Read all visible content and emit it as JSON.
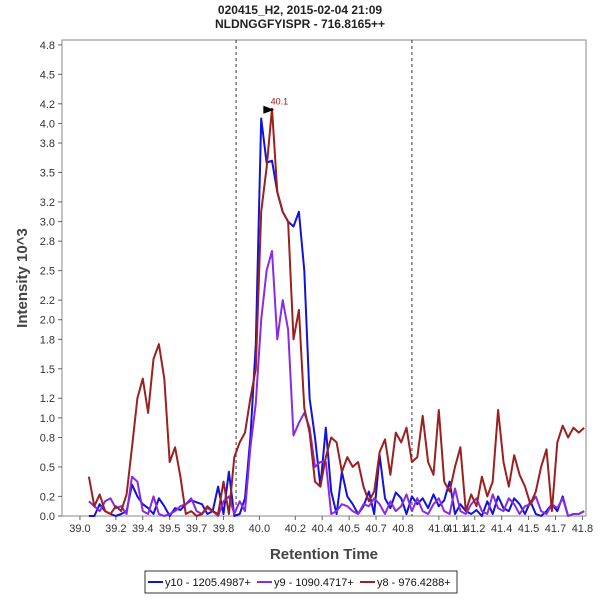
{
  "chart_data": {
    "type": "line",
    "title": "020415_H2, 2015-02-04 21:09",
    "subtitle": "NLDNGGFYISPR - 716.8165++",
    "xlabel": "Retention Time",
    "ylabel": "Intensity 10^3",
    "xlim": [
      38.9,
      41.82
    ],
    "ylim": [
      0,
      4.85
    ],
    "xticks": [
      "39.0",
      "39.2",
      "39.4",
      "39.5",
      "39.7",
      "39.8",
      "40.0",
      "40.2",
      "40.4",
      "40.5",
      "40.7",
      "40.8",
      "41.0",
      "41.1",
      "41.2",
      "41.4",
      "41.5",
      "41.7",
      "41.8"
    ],
    "xtick_values": [
      39.0,
      39.2,
      39.35,
      39.5,
      39.65,
      39.8,
      40.0,
      40.2,
      40.35,
      40.5,
      40.65,
      40.8,
      41.0,
      41.1,
      41.2,
      41.35,
      41.5,
      41.65,
      41.8
    ],
    "yticks": [
      "0.0",
      "0.2",
      "0.5",
      "0.8",
      "1.0",
      "1.2",
      "1.5",
      "1.8",
      "2.0",
      "2.2",
      "2.5",
      "2.8",
      "3.0",
      "3.2",
      "3.5",
      "3.8",
      "4.0",
      "4.2",
      "4.5",
      "4.8"
    ],
    "ytick_values": [
      0.0,
      0.2,
      0.5,
      0.8,
      1.0,
      1.2,
      1.5,
      1.8,
      2.0,
      2.2,
      2.5,
      2.8,
      3.0,
      3.2,
      3.5,
      3.8,
      4.0,
      4.2,
      4.5,
      4.8
    ],
    "integration_bounds": [
      39.87,
      40.85
    ],
    "annotation": {
      "text": "40.1",
      "x": 40.1,
      "y": 4.15,
      "color": "#8b1a1a"
    },
    "series": [
      {
        "name": "y10 - 1205.4987+",
        "color": "#1212d8",
        "x": [
          39.05,
          39.08,
          39.11,
          39.14,
          39.17,
          39.2,
          39.23,
          39.26,
          39.29,
          39.32,
          39.35,
          39.38,
          39.41,
          39.44,
          39.47,
          39.5,
          39.53,
          39.56,
          39.59,
          39.62,
          39.65,
          39.68,
          39.71,
          39.74,
          39.77,
          39.8,
          39.83,
          39.86,
          39.89,
          39.92,
          39.95,
          39.98,
          40.01,
          40.04,
          40.07,
          40.1,
          40.13,
          40.16,
          40.19,
          40.22,
          40.25,
          40.28,
          40.31,
          40.34,
          40.37,
          40.4,
          40.43,
          40.46,
          40.49,
          40.52,
          40.55,
          40.58,
          40.61,
          40.64,
          40.67,
          40.7,
          40.73,
          40.76,
          40.79,
          40.82,
          40.85,
          40.88,
          40.91,
          40.94,
          40.97,
          41.0,
          41.03,
          41.06,
          41.09,
          41.12,
          41.15,
          41.18,
          41.21,
          41.24,
          41.27,
          41.3,
          41.33,
          41.36,
          41.39,
          41.42,
          41.45,
          41.48,
          41.51,
          41.54,
          41.57,
          41.6,
          41.63,
          41.66,
          41.69,
          41.72,
          41.75,
          41.78,
          41.81
        ],
        "y": [
          0.0,
          0.0,
          0.12,
          0.05,
          0.02,
          0.0,
          0.02,
          0.05,
          0.32,
          0.2,
          0.12,
          0.08,
          0.02,
          0.18,
          0.1,
          0.0,
          0.08,
          0.06,
          0.12,
          0.16,
          0.14,
          0.12,
          0.02,
          0.05,
          0.3,
          0.02,
          0.45,
          0.0,
          0.02,
          0.18,
          0.8,
          1.75,
          4.05,
          3.6,
          3.62,
          3.3,
          3.1,
          3.0,
          2.95,
          3.1,
          2.5,
          1.2,
          0.8,
          0.3,
          0.9,
          0.25,
          0.02,
          0.45,
          0.2,
          0.12,
          0.02,
          0.1,
          0.25,
          0.02,
          0.62,
          0.18,
          0.08,
          0.24,
          0.18,
          0.02,
          0.2,
          0.12,
          0.18,
          0.08,
          0.22,
          0.1,
          0.16,
          0.35,
          0.02,
          0.12,
          0.05,
          0.02,
          0.06,
          0.0,
          0.15,
          0.02,
          0.2,
          0.08,
          0.05,
          0.18,
          0.12,
          0.02,
          0.15,
          0.02,
          0.0,
          0.05,
          0.12,
          0.05,
          0.2,
          0.0,
          0.02,
          0.02,
          0.05
        ]
      },
      {
        "name": "y9 - 1090.4717+",
        "color": "#8a2be2",
        "x": [
          39.05,
          39.08,
          39.11,
          39.14,
          39.17,
          39.2,
          39.23,
          39.26,
          39.29,
          39.32,
          39.35,
          39.38,
          39.41,
          39.44,
          39.47,
          39.5,
          39.53,
          39.56,
          39.59,
          39.62,
          39.65,
          39.68,
          39.71,
          39.74,
          39.77,
          39.8,
          39.83,
          39.86,
          39.89,
          39.92,
          39.95,
          39.98,
          40.01,
          40.04,
          40.07,
          40.1,
          40.13,
          40.16,
          40.19,
          40.22,
          40.25,
          40.28,
          40.31,
          40.34,
          40.37,
          40.4,
          40.43,
          40.46,
          40.49,
          40.52,
          40.55,
          40.58,
          40.61,
          40.64,
          40.67,
          40.7,
          40.73,
          40.76,
          40.79,
          40.82,
          40.85,
          40.88,
          40.91,
          40.94,
          40.97,
          41.0,
          41.03,
          41.06,
          41.09,
          41.12,
          41.15,
          41.18,
          41.21,
          41.24,
          41.27,
          41.3,
          41.33,
          41.36,
          41.39,
          41.42,
          41.45,
          41.48,
          41.51,
          41.54,
          41.57,
          41.6,
          41.63,
          41.66,
          41.69,
          41.72,
          41.75,
          41.78,
          41.81
        ],
        "y": [
          0.15,
          0.1,
          0.05,
          0.15,
          0.18,
          0.08,
          0.1,
          0.02,
          0.4,
          0.35,
          0.05,
          0.02,
          0.2,
          0.02,
          0.0,
          0.02,
          0.05,
          0.1,
          0.12,
          0.18,
          0.05,
          0.02,
          0.08,
          0.05,
          0.0,
          0.15,
          0.2,
          0.02,
          0.15,
          0.05,
          0.7,
          1.15,
          2.0,
          2.5,
          2.7,
          1.8,
          2.2,
          1.9,
          0.82,
          0.95,
          1.05,
          0.9,
          0.5,
          0.55,
          0.55,
          0.02,
          0.05,
          0.12,
          0.1,
          0.05,
          0.02,
          0.12,
          0.1,
          0.18,
          0.12,
          0.02,
          0.15,
          0.05,
          0.1,
          0.22,
          0.05,
          0.18,
          0.05,
          0.02,
          0.12,
          0.18,
          0.05,
          0.02,
          0.28,
          0.05,
          0.02,
          0.12,
          0.18,
          0.05,
          0.02,
          0.22,
          0.08,
          0.05,
          0.18,
          0.12,
          0.02,
          0.1,
          0.12,
          0.2,
          0.05,
          0.02,
          0.12,
          0.08,
          0.18,
          0.0,
          0.02,
          0.02,
          0.05
        ]
      },
      {
        "name": "y8 - 976.4288+",
        "color": "#9b2020",
        "x": [
          39.05,
          39.08,
          39.11,
          39.14,
          39.17,
          39.2,
          39.23,
          39.26,
          39.29,
          39.32,
          39.35,
          39.38,
          39.41,
          39.44,
          39.47,
          39.5,
          39.53,
          39.56,
          39.59,
          39.62,
          39.65,
          39.68,
          39.71,
          39.74,
          39.77,
          39.8,
          39.83,
          39.86,
          39.89,
          39.92,
          39.95,
          39.98,
          40.01,
          40.04,
          40.07,
          40.1,
          40.13,
          40.16,
          40.19,
          40.22,
          40.25,
          40.28,
          40.31,
          40.34,
          40.37,
          40.4,
          40.43,
          40.46,
          40.49,
          40.52,
          40.55,
          40.58,
          40.61,
          40.64,
          40.67,
          40.7,
          40.73,
          40.76,
          40.79,
          40.82,
          40.85,
          40.88,
          40.91,
          40.94,
          40.97,
          41.0,
          41.03,
          41.06,
          41.09,
          41.12,
          41.15,
          41.18,
          41.21,
          41.24,
          41.27,
          41.3,
          41.33,
          41.36,
          41.39,
          41.42,
          41.45,
          41.48,
          41.51,
          41.54,
          41.57,
          41.6,
          41.63,
          41.66,
          41.69,
          41.72,
          41.75,
          41.78,
          41.81
        ],
        "y": [
          0.4,
          0.1,
          0.22,
          0.05,
          0.02,
          0.1,
          0.05,
          0.22,
          0.7,
          1.2,
          1.4,
          1.05,
          1.6,
          1.75,
          1.4,
          0.55,
          0.7,
          0.4,
          0.02,
          0.05,
          0.0,
          0.02,
          0.1,
          0.05,
          0.02,
          0.35,
          0.02,
          0.6,
          0.75,
          0.85,
          1.2,
          1.5,
          3.1,
          3.55,
          4.15,
          3.3,
          3.1,
          3.0,
          1.8,
          2.1,
          1.1,
          0.85,
          0.35,
          0.3,
          0.6,
          0.8,
          0.75,
          0.45,
          0.6,
          0.5,
          0.55,
          0.3,
          0.15,
          0.25,
          0.65,
          0.78,
          0.42,
          0.85,
          0.75,
          0.9,
          0.55,
          0.6,
          1.02,
          0.55,
          0.42,
          1.08,
          0.35,
          0.25,
          0.5,
          0.7,
          0.05,
          0.22,
          0.1,
          0.4,
          0.2,
          0.35,
          1.08,
          0.55,
          0.3,
          0.62,
          0.42,
          0.3,
          0.12,
          0.25,
          0.5,
          0.68,
          0.05,
          0.75,
          0.92,
          0.8,
          0.9,
          0.85,
          0.9
        ]
      }
    ],
    "legend_position": "bottom-center"
  }
}
